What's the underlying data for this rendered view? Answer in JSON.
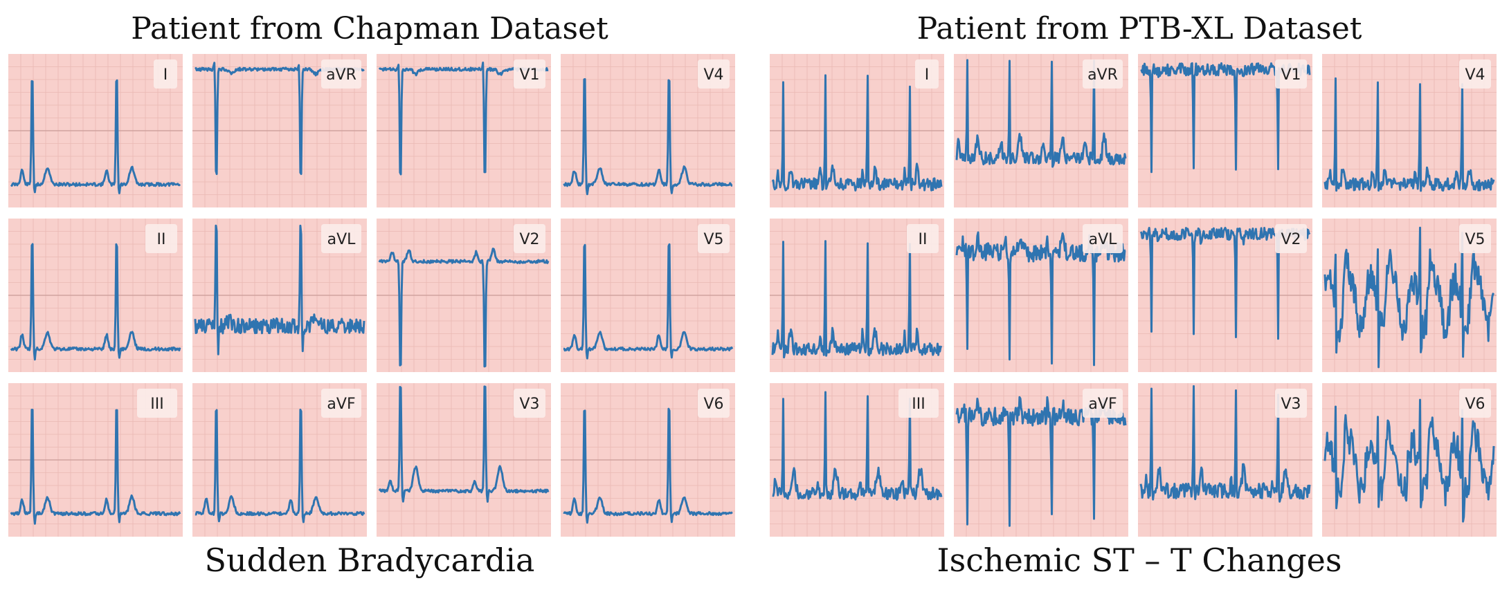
{
  "left_panel": {
    "title": "Patient from Chapman Dataset",
    "caption": "Sudden Bradycardia",
    "leads": [
      "I",
      "aVR",
      "V1",
      "V4",
      "II",
      "aVL",
      "V2",
      "V5",
      "III",
      "aVF",
      "V3",
      "V6"
    ]
  },
  "right_panel": {
    "title": "Patient from PTB-XL Dataset",
    "caption": "Ischemic ST – T Changes",
    "leads": [
      "I",
      "aVR",
      "V1",
      "V4",
      "II",
      "aVL",
      "V2",
      "V5",
      "III",
      "aVF",
      "V3",
      "V6"
    ]
  },
  "colors": {
    "paper": "#f8d0cc",
    "grid_minor": "#eab8b3",
    "grid_major": "#c89a96",
    "trace": "#2f74b0",
    "label_box": "#fbece9"
  },
  "chart_data": [
    {
      "type": "line",
      "description_source": "left panel",
      "layout": "3x4 ECG lead grid",
      "grid": true,
      "series": [
        {
          "name": "I",
          "pattern": "upright",
          "beats": 2,
          "noise": 0.01
        },
        {
          "name": "aVR",
          "pattern": "inverted",
          "beats": 2,
          "noise": 0.01
        },
        {
          "name": "V1",
          "pattern": "inverted",
          "beats": 2,
          "noise": 0.01
        },
        {
          "name": "V4",
          "pattern": "upright",
          "beats": 2,
          "noise": 0.01
        },
        {
          "name": "II",
          "pattern": "upright",
          "beats": 2,
          "noise": 0.01
        },
        {
          "name": "aVL",
          "pattern": "small_noisy",
          "beats": 2,
          "noise": 0.05
        },
        {
          "name": "V2",
          "pattern": "biphasic_down",
          "beats": 2,
          "noise": 0.01
        },
        {
          "name": "V5",
          "pattern": "upright",
          "beats": 2,
          "noise": 0.01
        },
        {
          "name": "III",
          "pattern": "upright",
          "beats": 2,
          "noise": 0.01
        },
        {
          "name": "aVF",
          "pattern": "upright",
          "beats": 2,
          "noise": 0.01
        },
        {
          "name": "V3",
          "pattern": "upright_low",
          "beats": 2,
          "noise": 0.01
        },
        {
          "name": "V6",
          "pattern": "upright",
          "beats": 2,
          "noise": 0.01
        }
      ]
    },
    {
      "type": "line",
      "description_source": "right panel",
      "layout": "3x4 ECG lead grid",
      "grid": true,
      "series": [
        {
          "name": "I",
          "pattern": "upright",
          "beats": 4,
          "noise": 0.04
        },
        {
          "name": "aVR",
          "pattern": "st_wavy",
          "beats": 4,
          "noise": 0.04
        },
        {
          "name": "V1",
          "pattern": "inverted",
          "beats": 4,
          "noise": 0.04
        },
        {
          "name": "V4",
          "pattern": "upright",
          "beats": 4,
          "noise": 0.04
        },
        {
          "name": "II",
          "pattern": "upright",
          "beats": 4,
          "noise": 0.04
        },
        {
          "name": "aVL",
          "pattern": "inverted_noisy",
          "beats": 4,
          "noise": 0.06
        },
        {
          "name": "V2",
          "pattern": "inverted",
          "beats": 4,
          "noise": 0.04
        },
        {
          "name": "V5",
          "pattern": "irregular",
          "beats": 4,
          "noise": 0.1
        },
        {
          "name": "III",
          "pattern": "st_wavy_upright",
          "beats": 4,
          "noise": 0.04
        },
        {
          "name": "aVF",
          "pattern": "inverted_noisy",
          "beats": 4,
          "noise": 0.06
        },
        {
          "name": "V3",
          "pattern": "upright_low",
          "beats": 4,
          "noise": 0.05
        },
        {
          "name": "V6",
          "pattern": "irregular",
          "beats": 4,
          "noise": 0.1
        }
      ]
    }
  ]
}
